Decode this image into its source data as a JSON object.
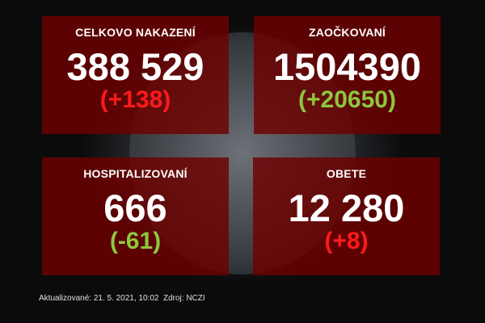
{
  "cards": [
    {
      "title": "CELKOVO NAKAZENÍ",
      "value": "388 529",
      "delta": "(+138)",
      "delta_color": "#ff1a1a"
    },
    {
      "title": "ZAOČKOVANÍ",
      "value": "1504390",
      "delta": "(+20650)",
      "delta_color": "#8dc63f"
    },
    {
      "title": "HOSPITALIZOVANÍ",
      "value": "666",
      "delta": "(-61)",
      "delta_color": "#8dc63f"
    },
    {
      "title": "OBETE",
      "value": "12 280",
      "delta": "(+8)",
      "delta_color": "#ff1a1a"
    }
  ],
  "footer": "Aktualizované: 21. 5. 2021, 10:02  Zdroj: NCZI"
}
